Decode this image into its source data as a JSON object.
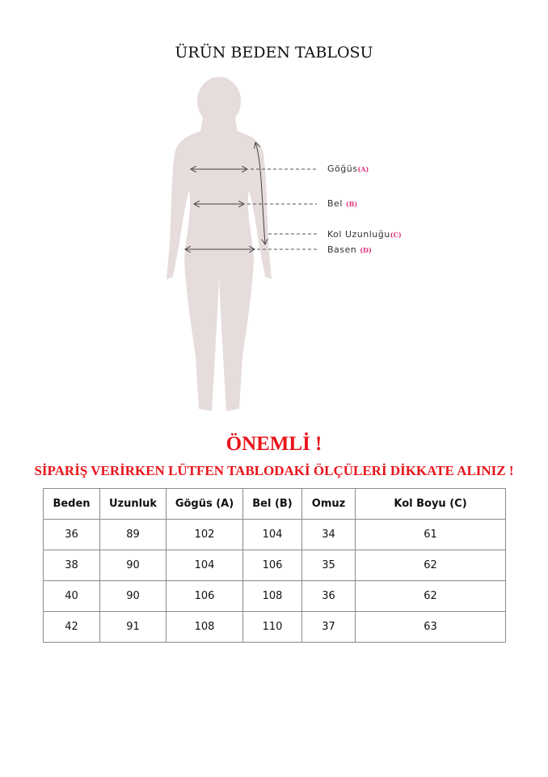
{
  "title": "ÜRÜN BEDEN TABLOSU",
  "figure": {
    "silhouette_color": "#e6dcdc",
    "labels": [
      {
        "name": "Göğüs",
        "code": "(A)"
      },
      {
        "name": "Bel",
        "code": "(B)"
      },
      {
        "name": "Kol Uzunluğu",
        "code": "(C)"
      },
      {
        "name": "Basen",
        "code": "(D)"
      }
    ]
  },
  "notice": {
    "heading": "ÖNEMLİ !",
    "message": "SİPARİŞ VERİRKEN LÜTFEN TABLODAKİ ÖLÇÜLERİ DİKKATE ALINIZ !",
    "color": "#e8141b"
  },
  "table": {
    "headers": [
      "Beden",
      "Uzunluk",
      "Gögüs (A)",
      "Bel (B)",
      "Omuz",
      "Kol Boyu (C)"
    ],
    "rows": [
      [
        "36",
        "89",
        "102",
        "104",
        "34",
        "61"
      ],
      [
        "38",
        "90",
        "104",
        "106",
        "35",
        "62"
      ],
      [
        "40",
        "90",
        "106",
        "108",
        "36",
        "62"
      ],
      [
        "42",
        "91",
        "108",
        "110",
        "37",
        "63"
      ]
    ]
  }
}
